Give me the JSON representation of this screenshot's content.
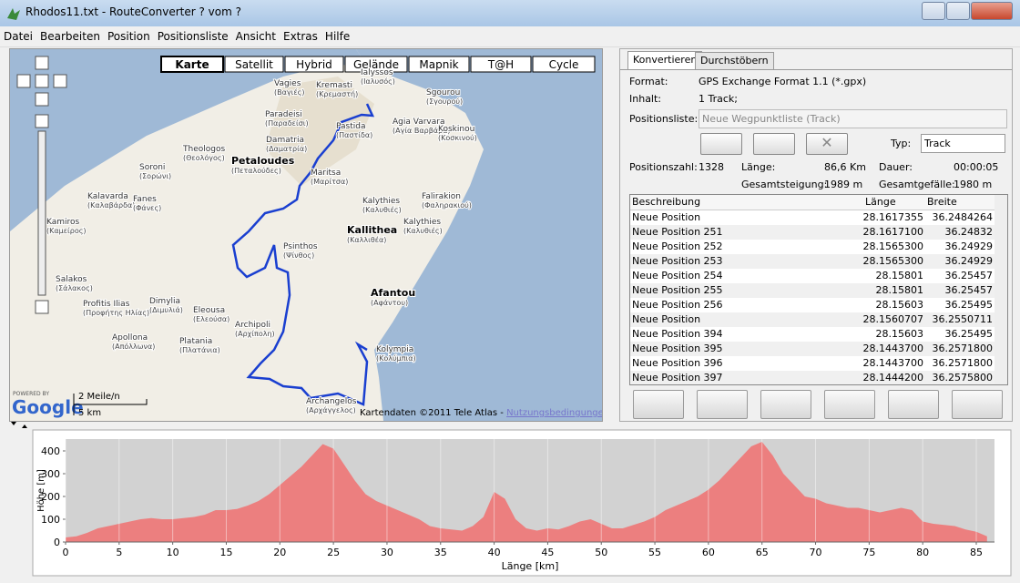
{
  "window": {
    "title": "Rhodos11.txt - RouteConverter ? vom ?"
  },
  "menu": [
    "Datei",
    "Bearbeiten",
    "Position",
    "Positionsliste",
    "Ansicht",
    "Extras",
    "Hilfe"
  ],
  "map": {
    "map_types": [
      "Karte",
      "Satellit",
      "Hybrid",
      "Gelände",
      "Mapnik",
      "T@H",
      "Cycle"
    ],
    "labels": [
      {
        "name": "Ialyssos",
        "local": "(Ιαλυσός)"
      },
      {
        "name": "Vagies",
        "local": "(Βαγιές)"
      },
      {
        "name": "Kremasti",
        "local": "(Κρεμαστή)"
      },
      {
        "name": "Sgourou",
        "local": "(Σγουρού)"
      },
      {
        "name": "Paradeisi",
        "local": "(Παραδείσι)"
      },
      {
        "name": "Pastida",
        "local": "(Παστίδα)"
      },
      {
        "name": "Agia Varvara",
        "local": "(Αγία Βαρβάρα)"
      },
      {
        "name": "Koskinou",
        "local": "(Κοσκινού)"
      },
      {
        "name": "Damatria",
        "local": "(Δαματρία)"
      },
      {
        "name": "Theologos",
        "local": "(Θεολόγος)"
      },
      {
        "name": "Petaloudes",
        "local": "(Πεταλούδες)"
      },
      {
        "name": "Soroni",
        "local": "(Σορώνι)"
      },
      {
        "name": "Maritsa",
        "local": "(Μαρίτσα)"
      },
      {
        "name": "Kalavarda",
        "local": "(Καλαβάρδα)"
      },
      {
        "name": "Fanes",
        "local": "(Φάνες)"
      },
      {
        "name": "Kalythies",
        "local": "(Καλυθιές)"
      },
      {
        "name": "Falirakion",
        "local": "(Φαληρακιού)"
      },
      {
        "name": "Kalythies",
        "local": "(Καλυθιές)"
      },
      {
        "name": "Kallithea",
        "local": "(Καλλιθέα)"
      },
      {
        "name": "Kamiros",
        "local": "(Καμείρος)"
      },
      {
        "name": "Psinthos",
        "local": "(Ψίνθος)"
      },
      {
        "name": "Salakos",
        "local": "(Σάλακος)"
      },
      {
        "name": "Afantou",
        "local": "(Αφάντου)"
      },
      {
        "name": "Profitis Ilias",
        "local": "(Προφήτης Ηλίας)"
      },
      {
        "name": "Dimylia",
        "local": "(Διμυλιά)"
      },
      {
        "name": "Eleousa",
        "local": "(Ελεούσα)"
      },
      {
        "name": "Archipoli",
        "local": "(Αρχίπολη)"
      },
      {
        "name": "Apollona",
        "local": "(Απόλλωνα)"
      },
      {
        "name": "Platania",
        "local": "(Πλατάνια)"
      },
      {
        "name": "Kolympia",
        "local": "(Κολύμπια)"
      },
      {
        "name": "Archangelos",
        "local": "(Αρχάγγελος)"
      }
    ],
    "powered_by": "POWERED BY",
    "logo": "Google",
    "scale_miles": "2 Meile/n",
    "scale_km": "5 km",
    "attribution": "Kartendaten ©2011 Tele Atlas - ",
    "terms_link": "Nutzungsbedingungen"
  },
  "panel": {
    "tabs": [
      "Konvertieren",
      "Durchstöbern"
    ],
    "format_label": "Format:",
    "format": "GPS Exchange Format 1.1 (*.gpx)",
    "content_label": "Inhalt:",
    "content": "1 Track;",
    "list_label": "Positionsliste:",
    "list": "Neue Wegpunktliste (Track)",
    "type_label": "Typ:",
    "type": "Track",
    "count_label": "Positionszahl:",
    "count": "1328",
    "length_label": "Länge:",
    "length": "86,6 Km",
    "duration_label": "Dauer:",
    "duration": "00:00:05",
    "ascent_label": "Gesamtsteigung:",
    "ascent": "1989 m",
    "descent_label": "Gesamtgefälle:",
    "descent": "1980 m"
  },
  "table": {
    "header": [
      "Beschreibung",
      "Länge",
      "Breite"
    ],
    "rows": [
      [
        "Neue Position",
        "28.1617355",
        "36.2484264"
      ],
      [
        "Neue Position 251",
        "28.1617100",
        "36.24832"
      ],
      [
        "Neue Position 252",
        "28.1565300",
        "36.24929"
      ],
      [
        "Neue Position 253",
        "28.1565300",
        "36.24929"
      ],
      [
        "Neue Position 254",
        "28.15801",
        "36.25457"
      ],
      [
        "Neue Position 255",
        "28.15801",
        "36.25457"
      ],
      [
        "Neue Position 256",
        "28.15603",
        "36.25495"
      ],
      [
        "Neue Position",
        "28.1560707",
        "36.2550711"
      ],
      [
        "Neue Position 394",
        "28.15603",
        "36.25495"
      ],
      [
        "Neue Position 395",
        "28.1443700",
        "36.2571800"
      ],
      [
        "Neue Position 396",
        "28.1443700",
        "36.2571800"
      ],
      [
        "Neue Position 397",
        "28.1444200",
        "36.2575800"
      ]
    ]
  },
  "chart_data": {
    "type": "area",
    "x_label": "Länge [km]",
    "y_label": "Höhe [m]",
    "color": "#ec7f7f",
    "x": [
      0,
      1,
      2,
      3,
      4,
      5,
      6,
      7,
      8,
      9,
      10,
      11,
      12,
      13,
      14,
      15,
      16,
      17,
      18,
      19,
      20,
      21,
      22,
      23,
      24,
      25,
      26,
      27,
      28,
      29,
      30,
      31,
      32,
      33,
      34,
      35,
      36,
      37,
      38,
      39,
      40,
      41,
      42,
      43,
      44,
      45,
      46,
      47,
      48,
      49,
      50,
      51,
      52,
      53,
      54,
      55,
      56,
      57,
      58,
      59,
      60,
      61,
      62,
      63,
      64,
      65,
      66,
      67,
      68,
      69,
      70,
      71,
      72,
      73,
      74,
      75,
      76,
      77,
      78,
      79,
      80,
      81,
      82,
      83,
      84,
      85,
      86
    ],
    "values": [
      20,
      25,
      40,
      60,
      70,
      80,
      90,
      100,
      105,
      100,
      100,
      105,
      110,
      120,
      140,
      140,
      145,
      160,
      180,
      210,
      250,
      290,
      330,
      380,
      430,
      410,
      340,
      270,
      210,
      180,
      160,
      140,
      120,
      100,
      70,
      60,
      55,
      50,
      70,
      110,
      220,
      190,
      100,
      60,
      50,
      60,
      55,
      70,
      90,
      100,
      80,
      60,
      60,
      75,
      90,
      110,
      140,
      160,
      180,
      200,
      230,
      270,
      320,
      370,
      420,
      440,
      380,
      300,
      250,
      200,
      190,
      170,
      160,
      150,
      150,
      140,
      130,
      140,
      150,
      140,
      90,
      80,
      75,
      70,
      55,
      45,
      25
    ],
    "xlim": [
      0,
      86.7
    ],
    "ylim": [
      0,
      452
    ],
    "xticks": [
      0,
      5,
      10,
      15,
      20,
      25,
      30,
      35,
      40,
      45,
      50,
      55,
      60,
      65,
      70,
      75,
      80,
      85
    ],
    "yticks": [
      0,
      100,
      200,
      300,
      400
    ],
    "grid": true
  }
}
